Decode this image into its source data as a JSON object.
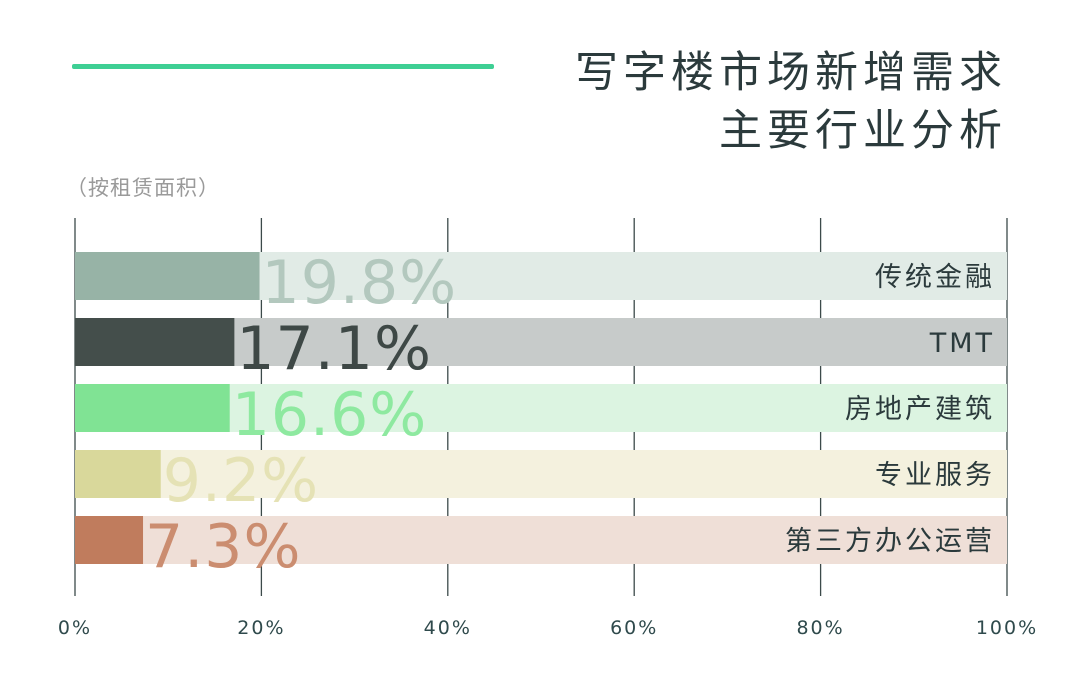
{
  "header": {
    "title_line1": "写字楼市场新增需求",
    "title_line2": "主要行业分析",
    "subtitle": "（按租赁面积）",
    "accent_color": "#3ecf94"
  },
  "chart_data": {
    "type": "bar",
    "orientation": "horizontal",
    "stacking": "share-of-100",
    "categories": [
      "传统金融",
      "TMT",
      "房地产建筑",
      "专业服务",
      "第三方办公运营"
    ],
    "values": [
      19.8,
      17.1,
      16.6,
      9.2,
      7.3
    ],
    "value_labels": [
      "19.8%",
      "17.1%",
      "16.6%",
      "9.2%",
      "7.3%"
    ],
    "colors": [
      "#97b3a6",
      "#444e4b",
      "#80e394",
      "#d9d89b",
      "#c07c5d"
    ],
    "track_colors": [
      "#e1ebe6",
      "#c7cbca",
      "#dcf4e1",
      "#f4f1de",
      "#efdfd7"
    ],
    "label_colors": [
      "#b3c8be",
      "#3e4846",
      "#8ee9a0",
      "#e5e2b5",
      "#cb8d70"
    ],
    "xlim": [
      0,
      100
    ],
    "xticks": [
      "0%",
      "20%",
      "40%",
      "60%",
      "80%",
      "100%"
    ],
    "grid": true,
    "title": "写字楼市场新增需求 主要行业分析",
    "subtitle": "（按租赁面积）"
  }
}
